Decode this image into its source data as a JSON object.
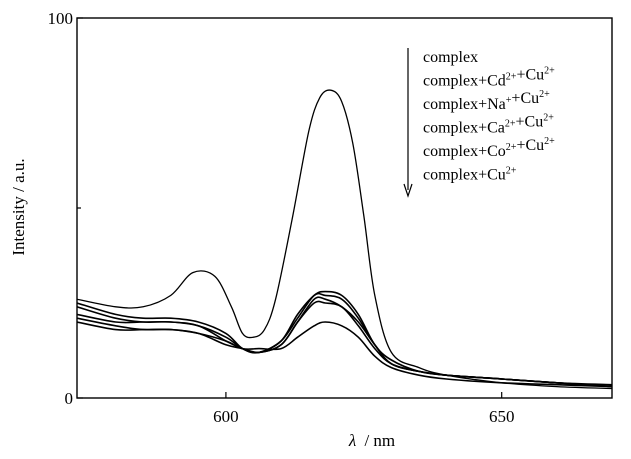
{
  "chart_data": {
    "type": "line",
    "xlabel_symbol": "λ",
    "xlabel_unit": "/ nm",
    "ylabel": "Intensity / a.u.",
    "xlim": [
      573,
      670
    ],
    "ylim": [
      0,
      100
    ],
    "x_ticks": [
      600,
      650
    ],
    "y_ticks": [
      0,
      100
    ],
    "y_minor_ticks": [
      50
    ],
    "grid": false,
    "legend_position": "top-right",
    "legend_arrow": "downward",
    "legend": [
      {
        "base": "complex",
        "parts": []
      },
      {
        "base": "complex",
        "parts": [
          {
            "t": "+Cd"
          },
          {
            "sup": "2+"
          },
          {
            "t": "+Cu"
          },
          {
            "sup": "2+"
          }
        ]
      },
      {
        "base": "complex",
        "parts": [
          {
            "t": "+Na"
          },
          {
            "sup": "+"
          },
          {
            "t": "+Cu"
          },
          {
            "sup": "2+"
          }
        ]
      },
      {
        "base": "complex",
        "parts": [
          {
            "t": "+Ca"
          },
          {
            "sup": "2+"
          },
          {
            "t": "+Cu"
          },
          {
            "sup": "2+"
          }
        ]
      },
      {
        "base": "complex",
        "parts": [
          {
            "t": "+Co"
          },
          {
            "sup": "2+"
          },
          {
            "t": "+Cu"
          },
          {
            "sup": "2+"
          }
        ]
      },
      {
        "base": "complex",
        "parts": [
          {
            "t": "+Cu"
          },
          {
            "sup": "2+"
          }
        ]
      }
    ],
    "series": [
      {
        "x": [
          573,
          580,
          585,
          590,
          594,
          598,
          601,
          603,
          605,
          607,
          609,
          612,
          615,
          617,
          619,
          621,
          623,
          625,
          627,
          630,
          635,
          640,
          650,
          660,
          670
        ],
        "y": [
          26,
          24,
          24,
          27,
          33,
          32,
          24,
          17,
          16,
          18,
          26,
          47,
          70,
          79,
          81,
          78,
          67,
          48,
          27,
          12,
          8,
          6,
          4,
          3,
          2.5
        ]
      },
      {
        "x": [
          573,
          580,
          585,
          590,
          595,
          600,
          603,
          606,
          610,
          613,
          616,
          618,
          621,
          624,
          627,
          630,
          635,
          640,
          650,
          660,
          670
        ],
        "y": [
          25,
          22,
          21,
          21,
          20,
          17,
          13,
          12,
          15,
          22,
          27,
          28,
          27,
          22,
          14,
          10,
          7,
          6,
          5,
          4,
          3
        ]
      },
      {
        "x": [
          573,
          580,
          585,
          590,
          595,
          600,
          603,
          606,
          610,
          613,
          616,
          618,
          621,
          624,
          627,
          630,
          635,
          640,
          650,
          660,
          670
        ],
        "y": [
          24,
          21,
          20,
          20,
          19,
          16,
          13,
          12,
          15,
          21,
          27,
          27,
          26,
          21,
          14,
          9,
          7,
          6,
          5,
          4,
          3
        ]
      },
      {
        "x": [
          573,
          580,
          585,
          590,
          595,
          600,
          603,
          606,
          610,
          613,
          616,
          618,
          621,
          624,
          627,
          630,
          635,
          640,
          650,
          660,
          670
        ],
        "y": [
          22,
          20,
          20,
          20,
          19,
          15,
          13,
          12,
          14,
          20,
          26,
          26,
          24,
          20,
          14,
          9,
          7,
          6,
          5,
          4,
          3.5
        ]
      },
      {
        "x": [
          573,
          580,
          585,
          590,
          595,
          600,
          603,
          606,
          610,
          613,
          616,
          618,
          621,
          624,
          627,
          630,
          635,
          640,
          650,
          660,
          670
        ],
        "y": [
          21,
          19,
          18,
          18,
          17,
          14,
          13,
          12,
          14,
          20,
          25,
          25,
          24,
          19,
          13,
          9,
          7,
          6,
          5,
          4,
          3
        ]
      },
      {
        "x": [
          573,
          580,
          585,
          590,
          595,
          600,
          603,
          606,
          610,
          613,
          616,
          618,
          621,
          624,
          627,
          630,
          635,
          640,
          650,
          660,
          670
        ],
        "y": [
          20,
          18,
          18,
          18,
          17,
          15,
          13,
          13,
          13,
          16,
          19,
          20,
          19,
          16,
          11,
          8,
          6,
          5,
          4,
          3.5,
          3
        ]
      }
    ]
  }
}
